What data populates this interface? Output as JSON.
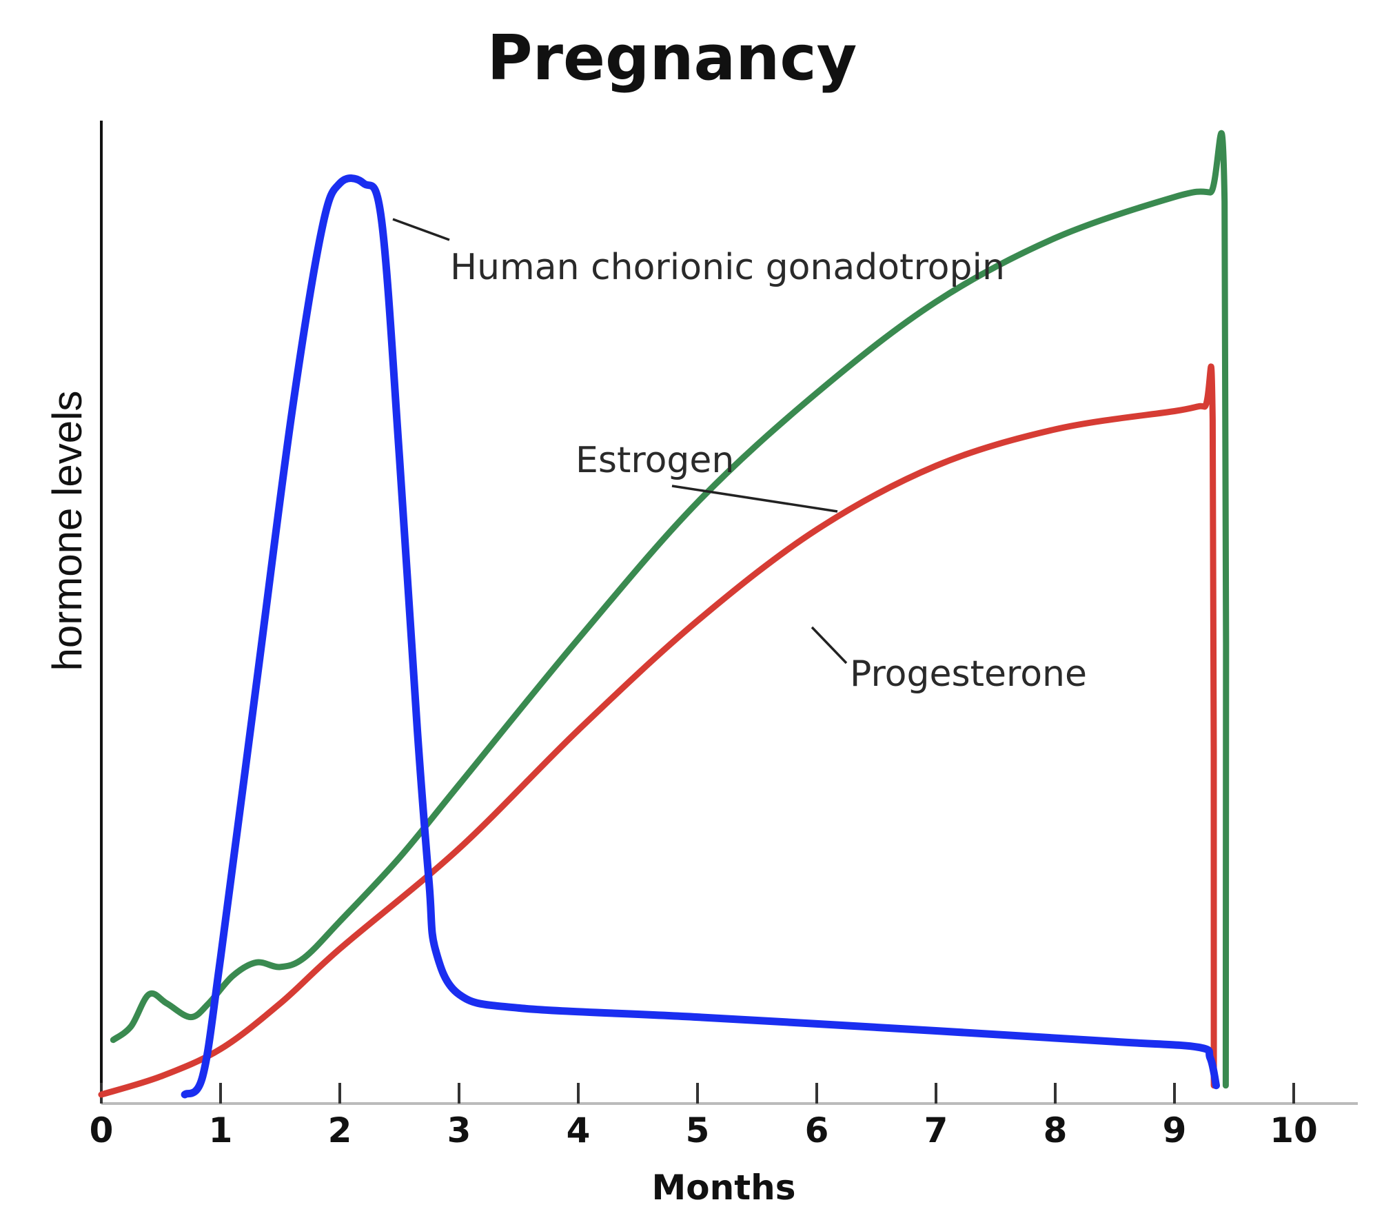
{
  "chart_data": {
    "type": "line",
    "title": "Pregnancy",
    "xlabel": "Months",
    "ylabel": "hormone levels",
    "xlim": [
      0,
      10
    ],
    "ylim": [
      0,
      1
    ],
    "x_ticks": [
      "0",
      "1",
      "2",
      "3",
      "4",
      "5",
      "6",
      "7",
      "8",
      "9",
      "10"
    ],
    "grid": false,
    "legend": "none (series labeled directly on the chart)",
    "series": [
      {
        "name": "Human chorionic gonadotropin",
        "color": "#1a2ef0",
        "points": [
          [
            0.7,
            0
          ],
          [
            0.85,
            0.02
          ],
          [
            1.0,
            0.15
          ],
          [
            1.3,
            0.45
          ],
          [
            1.6,
            0.75
          ],
          [
            1.85,
            0.95
          ],
          [
            2.0,
            1.0
          ],
          [
            2.2,
            1.0
          ],
          [
            2.35,
            0.96
          ],
          [
            2.5,
            0.7
          ],
          [
            2.65,
            0.4
          ],
          [
            2.75,
            0.23
          ],
          [
            2.8,
            0.16
          ],
          [
            3.0,
            0.11
          ],
          [
            3.5,
            0.095
          ],
          [
            5.0,
            0.085
          ],
          [
            7.0,
            0.07
          ],
          [
            8.5,
            0.058
          ],
          [
            9.2,
            0.052
          ],
          [
            9.3,
            0.04
          ],
          [
            9.35,
            0.01
          ]
        ]
      },
      {
        "name": "Estrogen",
        "color": "#3a8a50",
        "points": [
          [
            0.1,
            0.06
          ],
          [
            0.25,
            0.075
          ],
          [
            0.4,
            0.11
          ],
          [
            0.55,
            0.1
          ],
          [
            0.75,
            0.085
          ],
          [
            0.9,
            0.1
          ],
          [
            1.1,
            0.13
          ],
          [
            1.3,
            0.145
          ],
          [
            1.5,
            0.14
          ],
          [
            1.7,
            0.15
          ],
          [
            2.0,
            0.19
          ],
          [
            2.5,
            0.26
          ],
          [
            3.0,
            0.34
          ],
          [
            4.0,
            0.5
          ],
          [
            5.0,
            0.65
          ],
          [
            6.0,
            0.77
          ],
          [
            7.0,
            0.87
          ],
          [
            8.0,
            0.94
          ],
          [
            9.0,
            0.985
          ],
          [
            9.3,
            0.99
          ],
          [
            9.42,
            0.98
          ],
          [
            9.43,
            0.01
          ]
        ]
      },
      {
        "name": "Progesterone",
        "color": "#d63c34",
        "points": [
          [
            0,
            0.0
          ],
          [
            0.5,
            0.02
          ],
          [
            1.0,
            0.05
          ],
          [
            1.5,
            0.1
          ],
          [
            2.0,
            0.16
          ],
          [
            3.0,
            0.27
          ],
          [
            4.0,
            0.4
          ],
          [
            5.0,
            0.52
          ],
          [
            6.0,
            0.62
          ],
          [
            7.0,
            0.69
          ],
          [
            8.0,
            0.73
          ],
          [
            9.0,
            0.75
          ],
          [
            9.25,
            0.755
          ],
          [
            9.32,
            0.74
          ],
          [
            9.33,
            0.01
          ]
        ]
      }
    ]
  }
}
